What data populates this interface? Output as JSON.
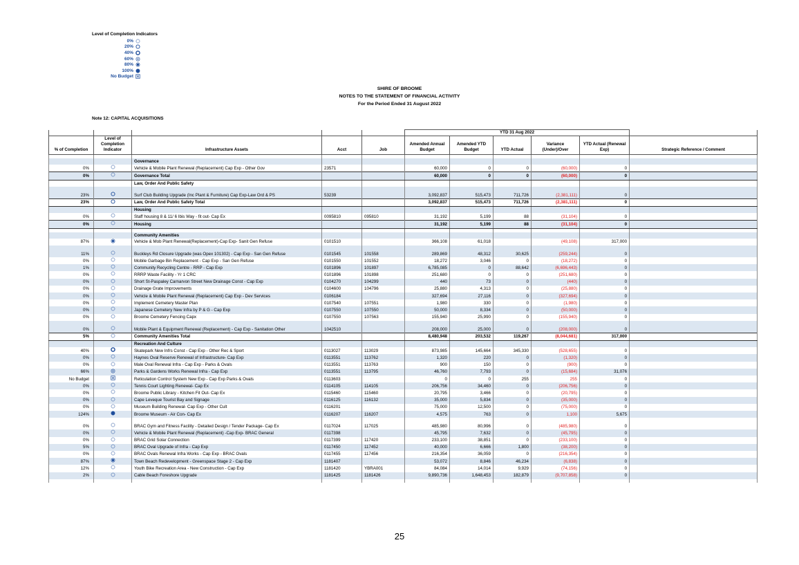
{
  "legend": {
    "title": "Level of Completion Indicators",
    "items": [
      "0%",
      "20%",
      "40%",
      "60%",
      "80%",
      "100%",
      "No Budget"
    ]
  },
  "header": {
    "org": "SHIRE OF BROOME",
    "title": "NOTES TO THE STATEMENT OF FINANCIAL ACTIVITY",
    "period": "For the Period Ended 31 August 2022"
  },
  "note": "Note 12: CAPITAL ACQUISITIONS",
  "table": {
    "period_heading": "YTD 31 Aug 2022",
    "columns": [
      "% of Completion",
      "Level of Completion Indicator",
      "Infrastructure Assets",
      "Acct",
      "Job",
      "Amended Annual Budget",
      "Amended YTD Budget",
      "YTD Actual",
      "Variance (Under)/Over",
      "YTD Actual (Renewal Exp)",
      "Strategic Reference / Comment"
    ],
    "groups": [
      {
        "heading": "Governance",
        "rows": [
          {
            "pct": "0%",
            "asset": "Vehicle & Mobile Plant Renewal (Replacement) Cap Exp - Other Gov",
            "acct": "23571",
            "budget": "60,000",
            "ytd_budget": "0",
            "ytd_actual": "0",
            "variance": "(60,000)",
            "renewal": "0"
          }
        ],
        "total": {
          "pct": "0%",
          "asset": "Governance Total",
          "budget": "60,000",
          "ytd_budget": "0",
          "ytd_actual": "0",
          "variance": "(60,000)",
          "renewal": "0"
        }
      },
      {
        "heading": "Law, Order And Public Safety",
        "rows": [
          {
            "pct": "23%",
            "asset": "Surf Club Building Upgrade (Inc Plant & Furniture) Cap Exp-Law Ord & PS",
            "acct": "53239",
            "budget": "3,092,837",
            "ytd_budget": "515,473",
            "ytd_actual": "711,726",
            "variance": "(2,381,111)",
            "renewal": "0"
          }
        ],
        "total": {
          "pct": "23%",
          "asset": "Law, Order And Public Safety Total",
          "budget": "3,092,837",
          "ytd_budget": "515,473",
          "ytd_actual": "711,726",
          "variance": "(2,381,111)",
          "renewal": "0"
        }
      },
      {
        "heading": "Housing",
        "rows": [
          {
            "pct": "0%",
            "asset": "Staff housing 8 & 11/ 6 Ibis Way - fit out- Cap Ex",
            "acct": "0095810",
            "job": "095810",
            "budget": "31,192",
            "ytd_budget": "5,199",
            "ytd_actual": "88",
            "variance": "(31,104)",
            "renewal": "0"
          }
        ],
        "total": {
          "pct": "0%",
          "asset": "Housing",
          "budget": "31,192",
          "ytd_budget": "5,199",
          "ytd_actual": "88",
          "variance": "(31,104)",
          "renewal": "0"
        }
      },
      {
        "heading": "Community Amenities",
        "rows": [
          {
            "pct": "87%",
            "asset": "Vehicle & Mob Plant Renewal(Replacement)-Cap Exp- Sanit Gen Refuse",
            "acct": "0101510",
            "budget": "366,108",
            "ytd_budget": "61,018",
            "variance": "(49,108)",
            "renewal": "317,000"
          },
          {
            "pct": "11%",
            "asset": "Buckleys Rd Closure Upgrade (was Opex 101302) - Cap Exp - San Gen Refuse",
            "acct": "0101545",
            "job": "101558",
            "budget": "289,869",
            "ytd_budget": "48,312",
            "ytd_actual": "30,625",
            "variance": "(259,244)",
            "renewal": "0"
          },
          {
            "pct": "0%",
            "asset": "Mobile Garbage Bin Replacement - Cap Exp - San Gen Refuse",
            "acct": "0101550",
            "job": "101552",
            "budget": "18,272",
            "ytd_budget": "3,046",
            "ytd_actual": "0",
            "variance": "(18,272)",
            "renewal": "0"
          },
          {
            "pct": "1%",
            "asset": "Community Recycling Centre - RRP - Cap Exp",
            "acct": "0101896",
            "job": "101897",
            "budget": "6,785,085",
            "ytd_budget": "0",
            "ytd_actual": "88,642",
            "variance": "(6,696,443)",
            "renewal": "0"
          },
          {
            "pct": "0%",
            "asset": "RRRP Waste Facility - Yr 1 CRC",
            "acct": "0101896",
            "job": "101898",
            "budget": "251,680",
            "ytd_budget": "0",
            "ytd_actual": "0",
            "variance": "(251,680)",
            "renewal": "0"
          },
          {
            "pct": "0%",
            "asset": "Short St-Paspaley Carnarvon Street New  Drainage Const - Cap Exp",
            "acct": "0104270",
            "job": "104299",
            "budget": "440",
            "ytd_budget": "73",
            "ytd_actual": "0",
            "variance": "(440)",
            "renewal": "0"
          },
          {
            "pct": "0%",
            "asset": "Drainage Grate Improvements",
            "acct": "0104600",
            "job": "104796",
            "budget": "25,880",
            "ytd_budget": "4,313",
            "ytd_actual": "0",
            "variance": "(25,880)",
            "renewal": "0"
          },
          {
            "pct": "0%",
            "asset": "Vehicle & Mobile Plant Renewal (Replacement) Cap Exp - Dev Services",
            "acct": "0106184",
            "budget": "327,694",
            "ytd_budget": "27,116",
            "ytd_actual": "0",
            "variance": "(327,694)",
            "renewal": "0"
          },
          {
            "pct": "0%",
            "asset": "Implement Cemetery Master Plan",
            "acct": "0107540",
            "job": "107551",
            "budget": "1,980",
            "ytd_budget": "330",
            "ytd_actual": "0",
            "variance": "(1,980)",
            "renewal": "0"
          },
          {
            "pct": "0%",
            "asset": "Japanese Cemetery New Infra by P & G - Cap Exp",
            "acct": "0107550",
            "job": "107550",
            "budget": "50,000",
            "ytd_budget": "8,334",
            "ytd_actual": "0",
            "variance": "(50,000)",
            "renewal": "0"
          },
          {
            "pct": "0%",
            "asset": "Broome Cemetery Fencing Capx",
            "acct": "0107550",
            "job": "107563",
            "budget": "155,940",
            "ytd_budget": "25,990",
            "ytd_actual": "0",
            "variance": "(155,940)",
            "renewal": "0"
          },
          {
            "pct": "0%",
            "asset": "Mobile Plant & Equipment Renewal (Replacement) - Cap Exp -  Sanitation Other",
            "acct": "1042510",
            "budget": "208,000",
            "ytd_budget": "25,000",
            "ytd_actual": "0",
            "variance": "(208,000)",
            "renewal": "0"
          }
        ],
        "total": {
          "pct": "5%",
          "asset": "Community Amenities Total",
          "budget": "8,480,948",
          "ytd_budget": "203,532",
          "ytd_actual": "119,267",
          "variance": "(8,044,681)",
          "renewal": "317,000"
        }
      },
      {
        "heading": "Recreation And Culture",
        "rows": [
          {
            "pct": "40%",
            "asset": "Skatepark New Infrs Const - Cap Exp - Other Rec & Sport",
            "acct": "0113027",
            "job": "113029",
            "budget": "873,985",
            "ytd_budget": "145,664",
            "ytd_actual": "345,330",
            "variance": "(528,655)",
            "renewal": "0"
          },
          {
            "pct": "0%",
            "asset": "Haynes Oval Reserve Renewal of Infrastructure- Cap Exp",
            "acct": "0113551",
            "job": "113762",
            "budget": "1,320",
            "ytd_budget": "220",
            "ytd_actual": "0",
            "variance": "(1,320)",
            "renewal": "0"
          },
          {
            "pct": "0%",
            "asset": "Male Oval Renewal Infra - Cap Exp - Parks & Ovals",
            "acct": "0113551",
            "job": "113763",
            "budget": "900",
            "ytd_budget": "150",
            "ytd_actual": "0",
            "variance": "(900)",
            "renewal": "0"
          },
          {
            "pct": "66%",
            "asset": "Parks & Gardens Works Renewal Infra - Cap Exp",
            "acct": "0113551",
            "job": "113795",
            "budget": "46,760",
            "ytd_budget": "7,793",
            "ytd_actual": "0",
            "variance": "(15,684)",
            "renewal": "31,076"
          },
          {
            "pct": "No Budget",
            "asset": "Reticulation Control System New Exp - Cap Exp Parks & Ovals",
            "acct": "0113603",
            "budget": "0",
            "ytd_budget": "0",
            "ytd_actual": "255",
            "variance": "255",
            "renewal": "0"
          },
          {
            "pct": "0%",
            "asset": "Tennis Court Lighting Renewal- Cap Ex",
            "acct": "0114105",
            "job": "114105",
            "budget": "206,756",
            "ytd_budget": "34,460",
            "ytd_actual": "0",
            "variance": "(206,756)",
            "renewal": "0"
          },
          {
            "pct": "0%",
            "asset": "Broome Public Library - Kitchen Fit Out- Cap Ex",
            "acct": "0115460",
            "job": "115460",
            "budget": "20,795",
            "ytd_budget": "3,466",
            "ytd_actual": "0",
            "variance": "(20,795)",
            "renewal": "0"
          },
          {
            "pct": "0%",
            "asset": "Cape Leveque Tourist Bay and Signage",
            "acct": "0116125",
            "job": "116132",
            "budget": "35,000",
            "ytd_budget": "5,834",
            "ytd_actual": "0",
            "variance": "(35,000)",
            "renewal": "0"
          },
          {
            "pct": "0%",
            "asset": "Museum Building Renewal- Cap Exp - Other Cult",
            "acct": "0116201",
            "budget": "75,000",
            "ytd_budget": "12,500",
            "ytd_actual": "0",
            "variance": "(75,000)",
            "renewal": "0"
          },
          {
            "pct": "124%",
            "asset": "Broome Museum - Air Con- Cap Ex",
            "acct": "0116207",
            "job": "116207",
            "budget": "4,575",
            "ytd_budget": "763",
            "ytd_actual": "0",
            "variance": "1,100",
            "renewal": "5,675"
          },
          {
            "pct": "0%",
            "asset": "BRAC Gym and Fitness Facility - Detailed Design / Tender Package- Cap Ex",
            "acct": "0117024",
            "job": "117025",
            "budget": "485,980",
            "ytd_budget": "80,996",
            "ytd_actual": "0",
            "variance": "(485,980)",
            "renewal": "0"
          },
          {
            "pct": "0%",
            "asset": "Vehicle & Mobile Plant Renewal (Replacement) -Cap Exp- BRAC General",
            "acct": "0117398",
            "budget": "45,795",
            "ytd_budget": "7,632",
            "ytd_actual": "0",
            "variance": "(45,795)",
            "renewal": "0"
          },
          {
            "pct": "0%",
            "asset": "BRAC Grid Solar Connection",
            "acct": "0117399",
            "job": "117420",
            "budget": "233,100",
            "ytd_budget": "38,851",
            "ytd_actual": "0",
            "variance": "(233,100)",
            "renewal": "0"
          },
          {
            "pct": "5%",
            "asset": "BRAC Oval  Upgrade of Infra  - Cap Exp",
            "acct": "0117450",
            "job": "117452",
            "budget": "40,000",
            "ytd_budget": "6,666",
            "ytd_actual": "1,800",
            "variance": "(38,200)",
            "renewal": "0"
          },
          {
            "pct": "0%",
            "asset": "BRAC Ovals Renewal  Infra Works - Cap Exp - BRAC Ovals",
            "acct": "0117455",
            "job": "117456",
            "budget": "216,354",
            "ytd_budget": "36,059",
            "ytd_actual": "0",
            "variance": "(216,354)",
            "renewal": "0"
          },
          {
            "pct": "87%",
            "asset": "Town Beach Redevelopment - Greenspace Stage 2 - Cap Exp",
            "acct": "1181407",
            "budget": "53,072",
            "ytd_budget": "8,846",
            "ytd_actual": "46,234",
            "variance": "(6,838)",
            "renewal": "0"
          },
          {
            "pct": "12%",
            "asset": "Youth Bike Recreation Area - New Construction - Cap Exp",
            "acct": "1181420",
            "job": "YBRA001",
            "budget": "84,084",
            "ytd_budget": "14,014",
            "ytd_actual": "9,929",
            "variance": "(74,156)",
            "renewal": "0"
          },
          {
            "pct": "2%",
            "asset": "Cable Beach Foreshore Upgrade",
            "acct": "1181425",
            "job": "1181426",
            "budget": "9,890,736",
            "ytd_budget": "1,648,453",
            "ytd_actual": "182,879",
            "variance": "(9,707,858)",
            "renewal": "0"
          }
        ]
      }
    ]
  },
  "page_number": "25"
}
